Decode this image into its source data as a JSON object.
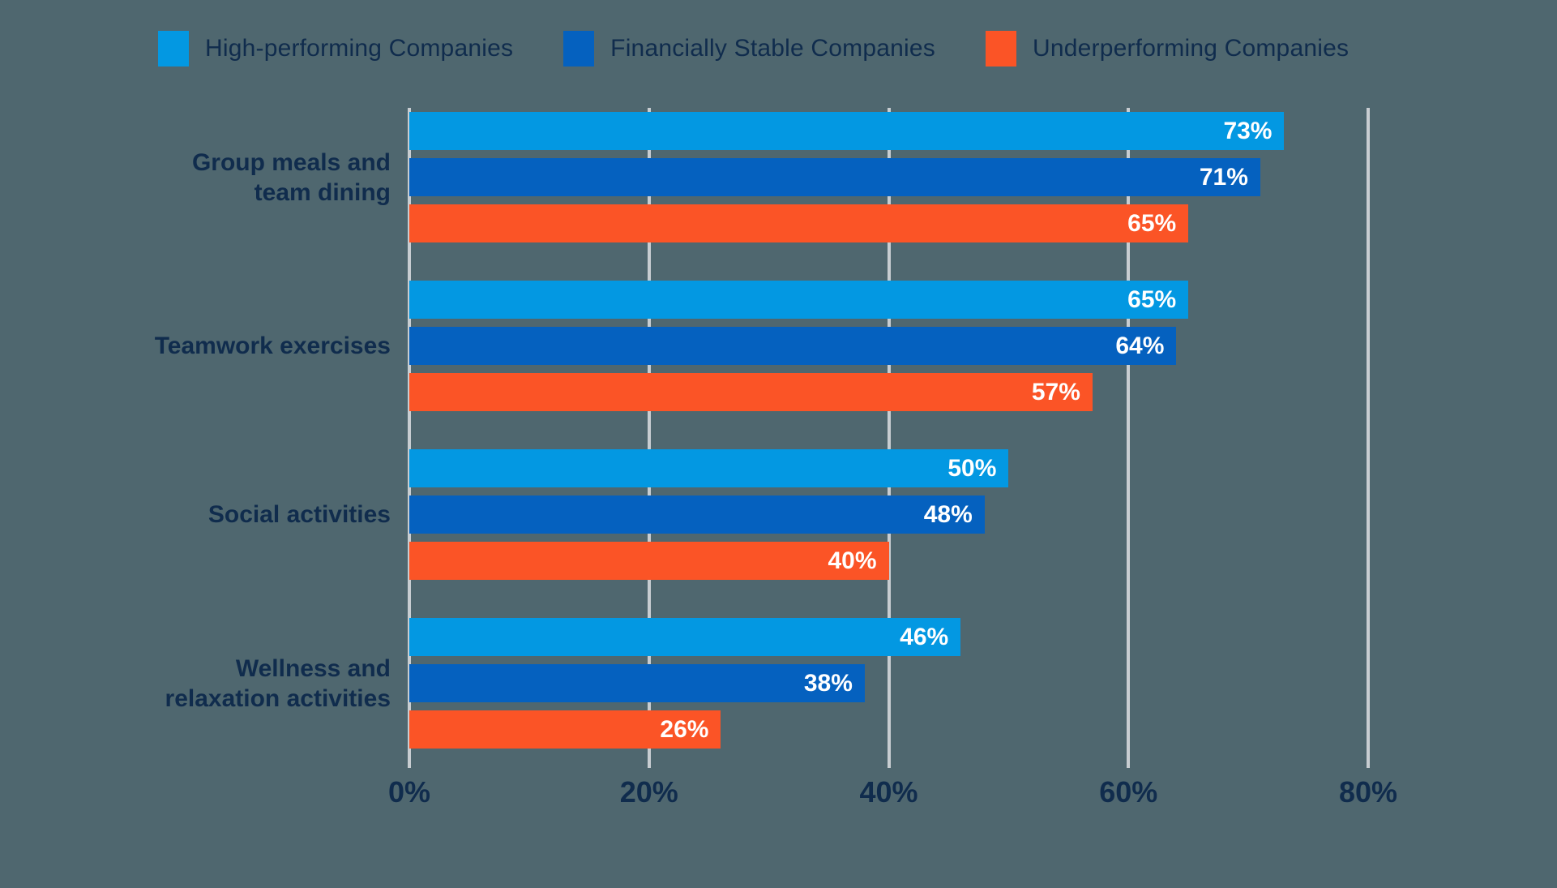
{
  "colors": {
    "background": "#4F676F",
    "text": "#102C4D",
    "gridline": "#C8CDD1",
    "value_label": "#FFFFFF"
  },
  "chart_data": {
    "type": "bar",
    "orientation": "horizontal",
    "title": "",
    "xlabel": "",
    "ylabel": "",
    "xlim": [
      0,
      80
    ],
    "grid": true,
    "legend_position": "top",
    "value_suffix": "%",
    "x_ticks": [
      "0%",
      "20%",
      "40%",
      "60%",
      "80%"
    ],
    "categories": [
      "Group meals and\nteam dining",
      "Teamwork exercises",
      "Social activities",
      "Wellness and\nrelaxation activities"
    ],
    "series": [
      {
        "name": "High-performing Companies",
        "color": "#0398E2",
        "values": [
          73,
          65,
          50,
          46
        ]
      },
      {
        "name": "Financially Stable Companies",
        "color": "#0561BF",
        "values": [
          71,
          64,
          48,
          38
        ]
      },
      {
        "name": "Underperforming Companies",
        "color": "#FB5426",
        "values": [
          65,
          57,
          40,
          26
        ]
      }
    ]
  }
}
